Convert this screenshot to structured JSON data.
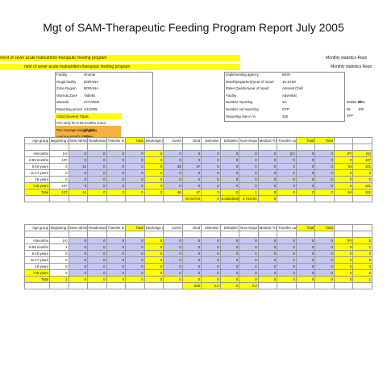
{
  "title": "Mgt of SAM-Therapeutic Feeding Program Report July 2005",
  "banner": {
    "line1": "ment of sever acute malnutrition-theraputic feeding program",
    "line2": "nent of sever acute malnutrition-theraputic feeding program",
    "right1": "Monthly statistics Repo",
    "right2": "Monthly statistics Repo"
  },
  "facility": {
    "left_labels": [
      "Facility",
      "Regal facility",
      "Zone Region",
      "Woreda Zone",
      "Woreda",
      "Reporting period",
      "Child (Severe) Totals",
      "Pen Only for 6-59 months cured",
      "Pen Average weight gain",
      "Average length of stay"
    ],
    "left_values": [
      "Oromia",
      "BORANA",
      "BORANA",
      "Yabello",
      "27/7/2005",
      "1/1/2005",
      "",
      "",
      "g/kg/day",
      "#Days"
    ],
    "right_labels": [
      "Implementing agency",
      "Monthly/quarterly/year of report",
      "Rates Quarter/year of report",
      "Facility",
      "Number reporting",
      "Number not reporting",
      "Reporting rate in %"
    ],
    "right_values": [
      "MOH",
      "15.10.98",
      "Antenat Child",
      "Adventist",
      "SC",
      "OTP",
      "100"
    ],
    "extra": [
      "Mobile clinic",
      "56",
      "56",
      "100",
      "0TP"
    ]
  },
  "table1": {
    "headers": [
      "Age group",
      "Beginning of month",
      "New Admission",
      "Readmission",
      "Transfer in",
      "Total",
      "Discharge (D)",
      "Cured",
      "Died",
      "Unknown",
      "Defaulter",
      "Non-respond",
      "Medical Transfer",
      "Transfer out",
      "Total",
      "Total"
    ],
    "rows": [
      {
        "age": "<6months",
        "vals": [
          "(A)",
          "0",
          "0",
          "0",
          "0",
          "0",
          "0",
          "0",
          "0",
          "0",
          "0",
          "0",
          "(C)",
          "0",
          "0",
          "(P)",
          "(G)"
        ]
      },
      {
        "age": "6-59 months",
        "vals": [
          "107",
          "0",
          "0",
          "0",
          "0",
          "0",
          "0",
          "0",
          "0",
          "0",
          "0",
          "0",
          "0",
          "0",
          "0",
          "0",
          "107"
        ]
      },
      {
        "age": "5-10 years",
        "vals": [
          "0",
          "44",
          "0",
          "0",
          "0",
          "0",
          "48",
          "47",
          "0",
          "0",
          "1",
          "0",
          "0",
          "0",
          "0",
          "54",
          "101"
        ]
      },
      {
        "age": "11-17 years",
        "vals": [
          "0",
          "0",
          "0",
          "0",
          "0",
          "0",
          "0",
          "0",
          "0",
          "0",
          "0",
          "0",
          "0",
          "0",
          "0",
          "0",
          "0"
        ]
      },
      {
        "age": "18 years",
        "vals": [
          "0",
          "0",
          "0",
          "0",
          "0",
          "0",
          "0",
          "0",
          "0",
          "0",
          "0",
          "0",
          "0",
          "0",
          "0",
          "0",
          "0"
        ]
      },
      {
        "age": ">18 years",
        "vals": [
          "107",
          "0",
          "0",
          "0",
          "0",
          "0",
          "0",
          "0",
          "0",
          "0",
          "0",
          "0",
          "0",
          "0",
          "0",
          "0",
          "101"
        ]
      },
      {
        "age": "Total",
        "vals": [
          "107",
          "44",
          "0",
          "0",
          "0",
          "0",
          "48",
          "47",
          "0",
          "0",
          "1",
          "0",
          "0",
          "0",
          "0",
          "54",
          "101"
        ]
      }
    ],
    "pct": [
      "87.03704",
      "0",
      "9.259259259",
      "3.703704",
      "0"
    ]
  },
  "table2": {
    "headers": [
      "Age group",
      "Beginning of the month",
      "New Admission",
      "Readmission",
      "Transfer in",
      "Total",
      "Discharge (D)",
      "Cured",
      "Died",
      "Unknown",
      "Defaulter",
      "Non-respond",
      "Medical Transfer",
      "Transfer out",
      "Total",
      "Total"
    ],
    "rows": [
      {
        "age": "<6months",
        "vals": [
          "(A)",
          "0",
          "0",
          "0",
          "0",
          "0",
          "0",
          "0",
          "0",
          "0",
          "0",
          "0",
          "0",
          "0",
          "0",
          "(P)",
          "0"
        ]
      },
      {
        "age": "6-59 months",
        "vals": [
          "1",
          "0",
          "0",
          "0",
          "0",
          "0",
          "0",
          "0",
          "0",
          "0",
          "0",
          "0",
          "0",
          "0",
          "0",
          "0",
          "1"
        ]
      },
      {
        "age": "5-10 years",
        "vals": [
          "0",
          "0",
          "0",
          "0",
          "0",
          "0",
          "0",
          "0",
          "0",
          "0",
          "0",
          "0",
          "0",
          "0",
          "0",
          "0",
          "0"
        ]
      },
      {
        "age": "11-17 years",
        "vals": [
          "0",
          "0",
          "0",
          "0",
          "0",
          "0",
          "0",
          "0",
          "0",
          "0",
          "0",
          "0",
          "0",
          "0",
          "0",
          "0",
          "0"
        ]
      },
      {
        "age": "18 years",
        "vals": [
          "0",
          "0",
          "0",
          "0",
          "0",
          "0",
          "0",
          "0",
          "0",
          "0",
          "0",
          "0",
          "0",
          "0",
          "0",
          "0",
          "0"
        ]
      },
      {
        "age": ">18 years",
        "vals": [
          "0",
          "0",
          "0",
          "0",
          "0",
          "0",
          "0",
          "0",
          "0",
          "0",
          "0",
          "0",
          "0",
          "0",
          "0",
          "0",
          "0"
        ]
      },
      {
        "age": "Total",
        "vals": [
          "1",
          "0",
          "0",
          "0",
          "0",
          "0",
          "0",
          "0",
          "0",
          "0",
          "0",
          "0",
          "0",
          "0",
          "0",
          "0",
          "1"
        ]
      }
    ],
    "pct": [
      "500",
      "0.0",
      "0",
      "0.0"
    ]
  },
  "colors": {
    "yellow": "#ffff00",
    "purple": "#c6c6f2",
    "orange": "#f5b041"
  }
}
